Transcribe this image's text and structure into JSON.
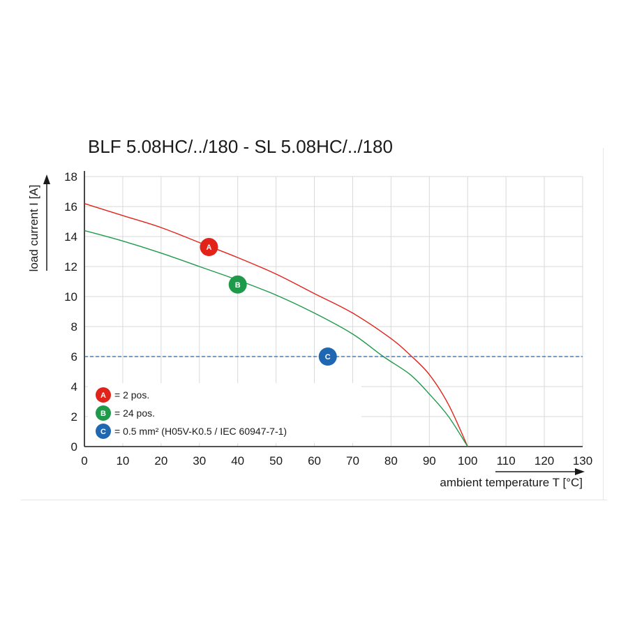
{
  "chart_data": {
    "type": "line",
    "title": "BLF 5.08HC/../180 - SL 5.08HC/../180",
    "xlabel": "ambient temperature T [°C]",
    "ylabel": "load current I [A]",
    "xlim": [
      0,
      130
    ],
    "ylim": [
      0,
      18
    ],
    "xticks": [
      "0",
      "10",
      "20",
      "30",
      "40",
      "50",
      "60",
      "70",
      "80",
      "90",
      "100",
      "110",
      "120",
      "130"
    ],
    "yticks": [
      "0",
      "2",
      "4",
      "6",
      "8",
      "10",
      "12",
      "14",
      "16",
      "18"
    ],
    "grid": true,
    "legend_position": "bottom-left",
    "series": [
      {
        "id": "A",
        "color": "#e2231a",
        "x": [
          0,
          10,
          20,
          30,
          40,
          50,
          60,
          70,
          80,
          85,
          90,
          95,
          100
        ],
        "y": [
          16.2,
          15.4,
          14.6,
          13.6,
          12.6,
          11.5,
          10.2,
          8.9,
          7.2,
          6.1,
          4.8,
          2.8,
          0
        ]
      },
      {
        "id": "B",
        "color": "#1e9a4a",
        "x": [
          0,
          10,
          20,
          30,
          40,
          50,
          60,
          70,
          78,
          85,
          90,
          95,
          100
        ],
        "y": [
          14.4,
          13.7,
          12.9,
          12.0,
          11.1,
          10.1,
          8.9,
          7.5,
          6.0,
          4.8,
          3.5,
          2.0,
          0
        ]
      },
      {
        "id": "C",
        "color": "#1f67b1",
        "dashed": true,
        "x": [
          0,
          130
        ],
        "y": [
          6,
          6
        ]
      }
    ],
    "markers": [
      {
        "label": "A",
        "x": 32.5,
        "y": 13.3,
        "color": "#e2231a"
      },
      {
        "label": "B",
        "x": 40,
        "y": 10.8,
        "color": "#1e9a4a"
      },
      {
        "label": "C",
        "x": 63.5,
        "y": 6.0,
        "color": "#1f67b1"
      }
    ],
    "legend": [
      {
        "label": "A",
        "text": "= 2 pos.",
        "color": "#e2231a"
      },
      {
        "label": "B",
        "text": "= 24 pos.",
        "color": "#1e9a4a"
      },
      {
        "label": "C",
        "text": "= 0.5 mm² (H05V-K0.5 / IEC 60947-7-1)",
        "color": "#1f67b1"
      }
    ]
  }
}
